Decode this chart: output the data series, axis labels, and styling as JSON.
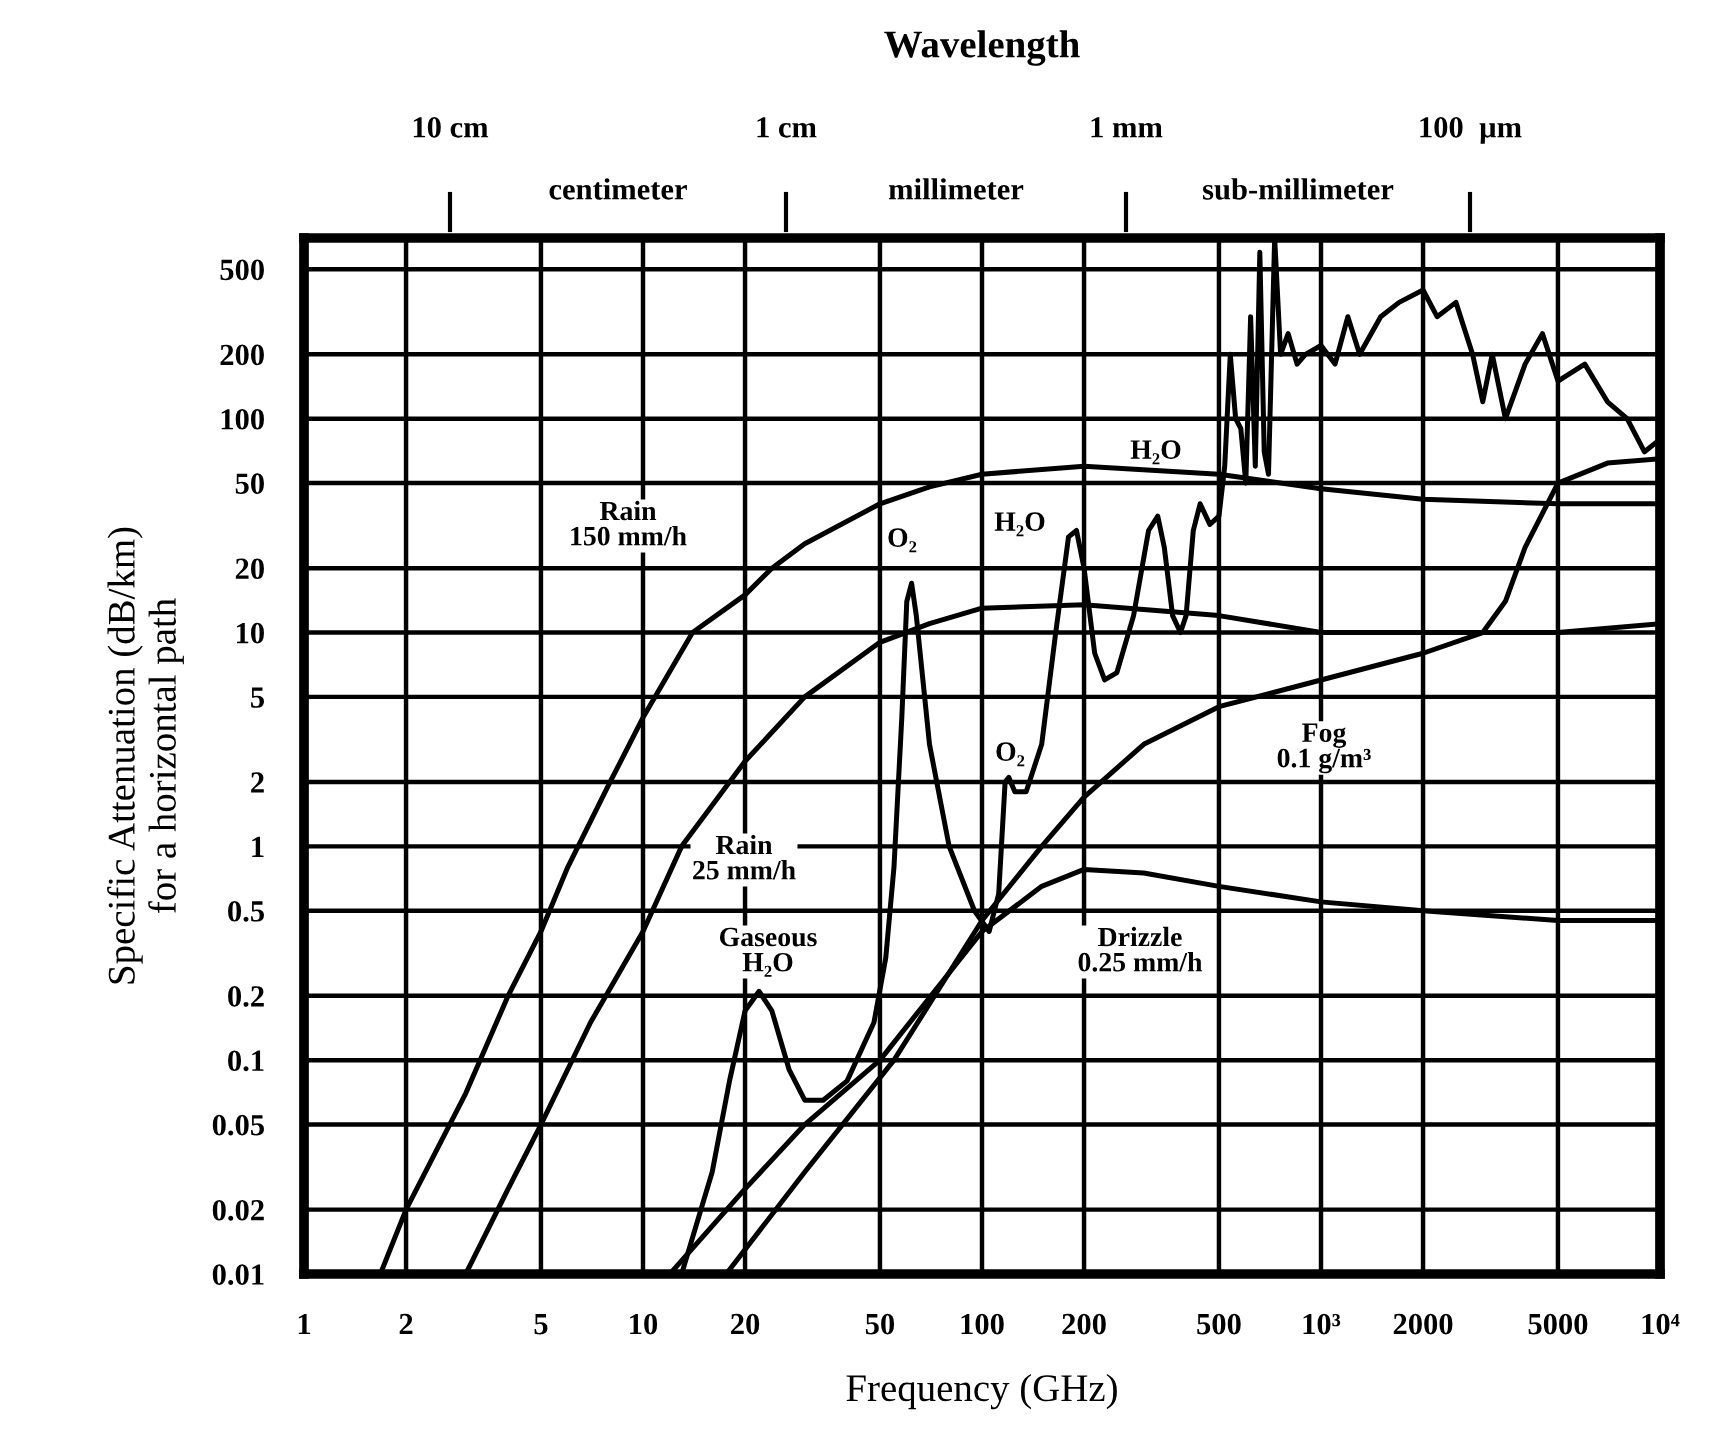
{
  "chart_data": {
    "type": "line",
    "xlabel": "Frequency (GHz)",
    "ylabel": "Specific Attenuation (dB/km)\nfor a horizontal path",
    "x2label": "Wavelength",
    "log": "xy",
    "grid": true,
    "legend": false,
    "marker": "none",
    "line_style": "solid",
    "xlim": [
      1,
      10000
    ],
    "ylim": [
      0.01,
      700
    ],
    "xticks": [
      1,
      2,
      5,
      10,
      20,
      50,
      100,
      200,
      500,
      {
        "value": 1000,
        "label": "10³"
      },
      2000,
      5000,
      {
        "value": 10000,
        "label": "10⁴"
      }
    ],
    "yticks": [
      0.01,
      0.02,
      0.05,
      0.1,
      0.2,
      0.5,
      1,
      2,
      5,
      10,
      20,
      50,
      100,
      200,
      500
    ],
    "series": [
      {
        "color": "#000000",
        "x": [
          1.68,
          2,
          3,
          4,
          5,
          6,
          8,
          10,
          14,
          20,
          24,
          30,
          50,
          70,
          100,
          200,
          500,
          1000,
          2000,
          5000,
          10000
        ],
        "values": [
          0.01,
          0.02,
          0.07,
          0.2,
          0.4,
          0.8,
          2,
          4,
          10,
          15,
          20,
          26,
          40,
          48,
          55,
          60,
          55,
          47,
          42,
          40,
          40
        ]
      },
      {
        "color": "#000000",
        "x": [
          3,
          4,
          5,
          7,
          10,
          13,
          20,
          30,
          50,
          70,
          100,
          200,
          500,
          1000,
          2000,
          5000,
          10000
        ],
        "values": [
          0.01,
          0.025,
          0.05,
          0.15,
          0.4,
          1,
          2.5,
          5,
          9,
          11,
          13,
          13.5,
          12,
          10,
          10,
          10,
          11
        ]
      },
      {
        "color": "#000000",
        "x": [
          12,
          20,
          30,
          50,
          100,
          150,
          200,
          300,
          500,
          1000,
          2000,
          5000,
          10000
        ],
        "values": [
          0.01,
          0.025,
          0.05,
          0.1,
          0.4,
          0.65,
          0.78,
          0.75,
          0.65,
          0.55,
          0.5,
          0.45,
          0.45
        ]
      },
      {
        "color": "#000000",
        "x": [
          17.6,
          30,
          55,
          100,
          150,
          200,
          300,
          500,
          1000,
          2000,
          3000,
          3500,
          4000,
          5000,
          7000,
          10000
        ],
        "values": [
          0.01,
          0.03,
          0.1,
          0.45,
          1.0,
          1.7,
          3,
          4.5,
          6,
          8,
          10,
          14,
          25,
          50,
          62,
          65
        ]
      },
      {
        "color": "#000000",
        "x": [
          13,
          16,
          18,
          20,
          22,
          24,
          27,
          30,
          34,
          40,
          48,
          52,
          55,
          58,
          60,
          62,
          64,
          70,
          80,
          95,
          105,
          112,
          117,
          120,
          125,
          135,
          150,
          165,
          180,
          190,
          200,
          215,
          230,
          250,
          280,
          310,
          330,
          345,
          365,
          385,
          400,
          420,
          440,
          470,
          500,
          520,
          540,
          560,
          580,
          600,
          620,
          640,
          660,
          680,
          700,
          730,
          760,
          800,
          850,
          900,
          1000,
          1100,
          1200,
          1300,
          1500,
          1700,
          2000,
          2200,
          2500,
          2800,
          3000,
          3200,
          3500,
          4000,
          4500,
          5000,
          6000,
          7000,
          8000,
          9000,
          10000
        ],
        "values": [
          0.01,
          0.03,
          0.08,
          0.17,
          0.21,
          0.17,
          0.09,
          0.065,
          0.065,
          0.08,
          0.15,
          0.3,
          0.8,
          4,
          14,
          17,
          12,
          3,
          1,
          0.5,
          0.4,
          0.6,
          2,
          2.1,
          1.8,
          1.8,
          3,
          10,
          28,
          30,
          20,
          8,
          6,
          6.5,
          12,
          30,
          35,
          25,
          12,
          10,
          12,
          30,
          40,
          32,
          35,
          60,
          200,
          100,
          90,
          50,
          300,
          60,
          600,
          70,
          55,
          700,
          200,
          250,
          180,
          200,
          220,
          180,
          300,
          200,
          300,
          350,
          400,
          300,
          350,
          200,
          120,
          200,
          100,
          180,
          250,
          150,
          180,
          120,
          100,
          70,
          80
        ]
      }
    ],
    "annotations": [
      "10 cm",
      "1 cm",
      "1 mm",
      "100  µm",
      "centimeter",
      "millimeter",
      "sub-millimeter",
      "Rain\n150 mm/h",
      "Rain\n25 mm/h",
      "Gaseous\nH₂O",
      "O₂",
      "O₂",
      "H₂O",
      "H₂O",
      "Fog\n0.1 g/m³",
      "Drizzle\n0.25 mm/h"
    ]
  }
}
